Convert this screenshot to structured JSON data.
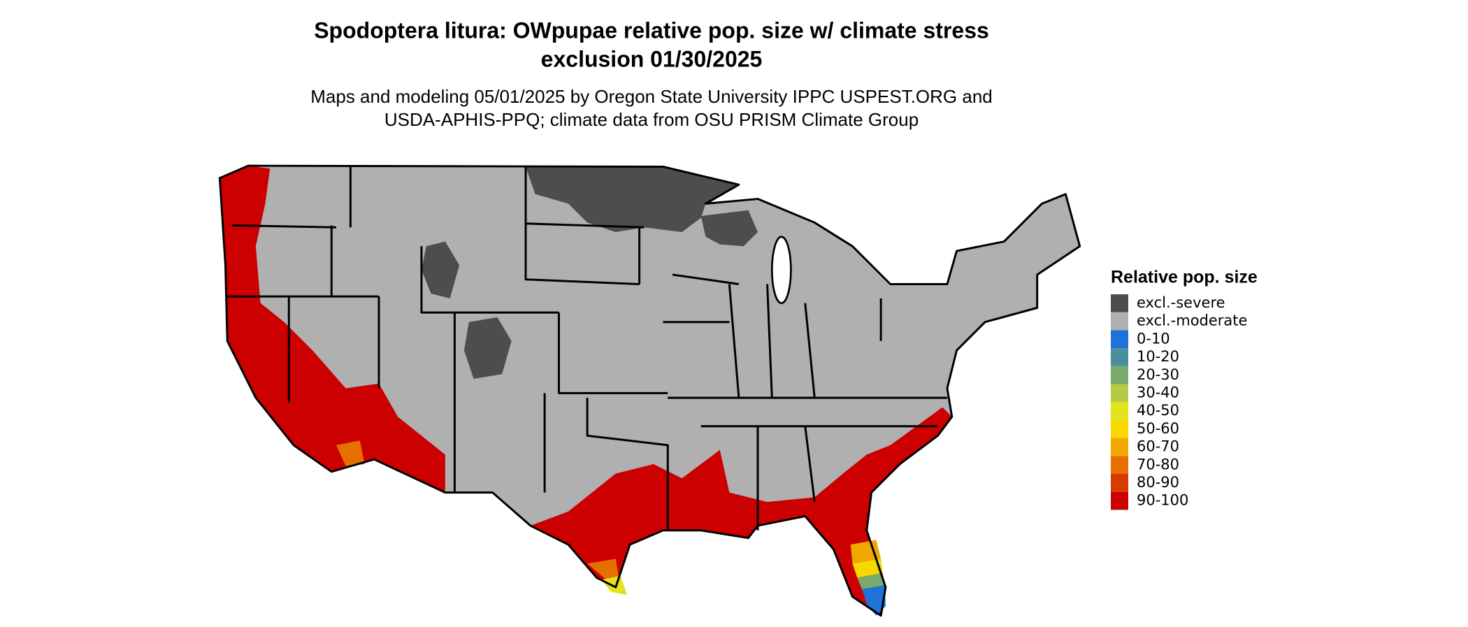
{
  "title": [
    "Spodoptera litura: OWpupae relative pop. size w/ climate stress",
    "exclusion 01/30/2025"
  ],
  "subtitle": [
    "Maps and modeling 05/01/2025 by Oregon State University IPPC USPEST.ORG and",
    "USDA-APHIS-PPQ; climate data from OSU PRISM Climate Group"
  ],
  "legend": {
    "title": "Relative pop. size",
    "items": [
      {
        "label": "excl.-severe",
        "color": "#4d4d4d"
      },
      {
        "label": "excl.-moderate",
        "color": "#b0b0b0"
      },
      {
        "label": "0-10",
        "color": "#1f73d6"
      },
      {
        "label": "10-20",
        "color": "#4a8fa0"
      },
      {
        "label": "20-30",
        "color": "#7aab6e"
      },
      {
        "label": "30-40",
        "color": "#b2cc45"
      },
      {
        "label": "40-50",
        "color": "#e2e31c"
      },
      {
        "label": "50-60",
        "color": "#f7d800"
      },
      {
        "label": "60-70",
        "color": "#f0a800"
      },
      {
        "label": "70-80",
        "color": "#e57000"
      },
      {
        "label": "80-90",
        "color": "#d83a00"
      },
      {
        "label": "90-100",
        "color": "#cc0000"
      }
    ]
  }
}
